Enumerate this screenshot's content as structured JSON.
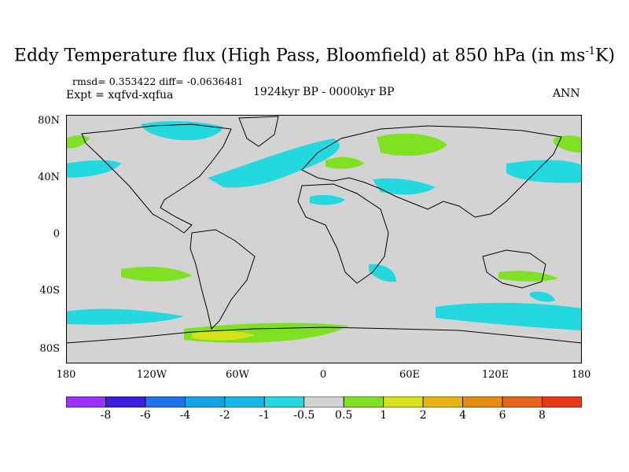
{
  "title": {
    "main": "Eddy Temperature flux (High Pass, Bloomfield) at 850 hPa (in ms",
    "sup": "-1",
    "tail": "K)"
  },
  "stats": "rmsd= 0.353422  diff= -0.0636481",
  "experiment": "Expt = xqfvd-xqfua",
  "period": "1924kyr BP - 0000kyr BP",
  "season": "ANN",
  "map": {
    "lat_ticks": [
      "80N",
      "40N",
      "0",
      "40S",
      "80S"
    ],
    "lon_ticks": [
      "180",
      "120W",
      "60W",
      "0",
      "60E",
      "120E",
      "180"
    ],
    "background": "#d3d3d3",
    "colors": {
      "neg_small": "#24d8e0",
      "neg_mid": "#16b8e8",
      "pos_small": "#7fe024",
      "pos_mid": "#d6e21a"
    }
  },
  "colorbar": {
    "labels": [
      "-8",
      "-6",
      "-4",
      "-2",
      "-1",
      "-0.5",
      "0.5",
      "1",
      "2",
      "4",
      "6",
      "8"
    ],
    "colors": [
      "#9b30ff",
      "#3c1dde",
      "#1e74e8",
      "#12a2e6",
      "#16b8e8",
      "#24d8e0",
      "#d3d3d3",
      "#7fe024",
      "#d6e21a",
      "#e8b414",
      "#e88c10",
      "#e8641a",
      "#e83a1a"
    ]
  }
}
